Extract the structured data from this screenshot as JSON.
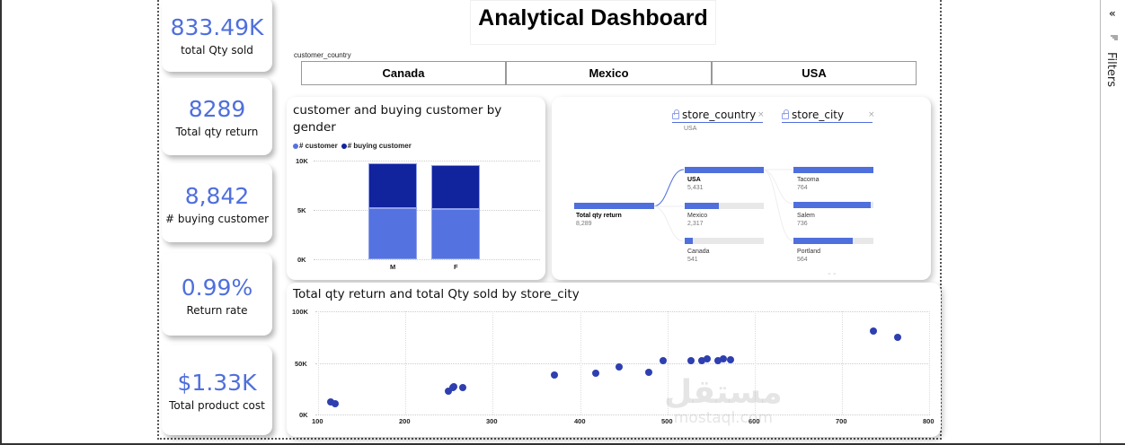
{
  "page": {
    "title": "Analytical Dashboard",
    "accent_color": "#4f6fdc",
    "dark_accent_color": "#12239e"
  },
  "kpis": [
    {
      "value": "833.49K",
      "label": "total Qty sold"
    },
    {
      "value": "8289",
      "label": "Total qty return"
    },
    {
      "value": "8,842",
      "label": "# buying customer"
    },
    {
      "value": "0.99%",
      "label": "Return rate"
    },
    {
      "value": "$1.33K",
      "label": "Total product cost"
    }
  ],
  "slicer": {
    "label": "customer_country",
    "options": [
      "Canada",
      "Mexico",
      "USA"
    ]
  },
  "bar_chart": {
    "title": "customer and buying customer by gender",
    "legend": [
      {
        "label": "# customer",
        "color": "#5473e0"
      },
      {
        "label": "# buying customer",
        "color": "#12239e"
      }
    ],
    "y_ticks": [
      "10K",
      "5K",
      "0K"
    ],
    "categories": [
      "M",
      "F"
    ]
  },
  "decomp_tree": {
    "root": {
      "label": "Total qty return",
      "value": "8,289"
    },
    "level1": {
      "header": "store_country",
      "selected": "USA",
      "nodes": [
        {
          "label": "USA",
          "value": "5,431",
          "pct": 100
        },
        {
          "label": "Mexico",
          "value": "2,317",
          "pct": 43
        },
        {
          "label": "Canada",
          "value": "541",
          "pct": 10
        }
      ]
    },
    "level2": {
      "header": "store_city",
      "nodes": [
        {
          "label": "Tacoma",
          "value": "764",
          "pct": 100
        },
        {
          "label": "Salem",
          "value": "736",
          "pct": 96
        },
        {
          "label": "Portland",
          "value": "564",
          "pct": 74
        }
      ]
    },
    "more_indicator": "⌄⌄"
  },
  "scatter": {
    "title": "Total qty return and total Qty sold by store_city",
    "y_ticks": [
      "100K",
      "50K",
      "0K"
    ],
    "x_ticks": [
      "100",
      "200",
      "300",
      "400",
      "500",
      "600",
      "700",
      "800"
    ]
  },
  "filters_pane": {
    "label": "Filters",
    "collapse_icon": "«"
  },
  "watermark": {
    "arabic": "مستقل",
    "latin": "mostaql.com"
  },
  "chart_data": [
    {
      "type": "bar",
      "title": "customer and buying customer by gender",
      "categories": [
        "M",
        "F"
      ],
      "series": [
        {
          "name": "# customer",
          "values": [
            5200,
            5100
          ]
        },
        {
          "name": "# buying customer",
          "values": [
            4500,
            4400
          ]
        }
      ],
      "stacked": true,
      "xlabel": "",
      "ylabel": "",
      "ylim": [
        0,
        10000
      ],
      "y_tick_labels": [
        "0K",
        "5K",
        "10K"
      ],
      "legend_position": "top-left",
      "grid": true
    },
    {
      "type": "bar",
      "title": "Decomposition tree: Total qty return",
      "root": {
        "label": "Total qty return",
        "value": 8289
      },
      "levels": [
        {
          "field": "store_country",
          "categories": [
            "USA",
            "Mexico",
            "Canada"
          ],
          "values": [
            5431,
            2317,
            541
          ]
        },
        {
          "field": "store_city",
          "filter": "USA",
          "categories": [
            "Tacoma",
            "Salem",
            "Portland"
          ],
          "values": [
            764,
            736,
            564
          ]
        }
      ]
    },
    {
      "type": "scatter",
      "title": "Total qty return and total Qty sold by store_city",
      "xlabel": "Total qty return",
      "ylabel": "total Qty sold",
      "xlim": [
        100,
        800
      ],
      "ylim": [
        0,
        100000
      ],
      "x_tick_labels": [
        "100",
        "200",
        "300",
        "400",
        "500",
        "600",
        "700",
        "800"
      ],
      "y_tick_labels": [
        "0K",
        "50K",
        "100K"
      ],
      "grid": true,
      "points": [
        {
          "x": 114,
          "y": 12000
        },
        {
          "x": 120,
          "y": 10500
        },
        {
          "x": 249,
          "y": 22500
        },
        {
          "x": 254,
          "y": 26000
        },
        {
          "x": 255,
          "y": 27000
        },
        {
          "x": 266,
          "y": 26000
        },
        {
          "x": 371,
          "y": 38000
        },
        {
          "x": 418,
          "y": 40000
        },
        {
          "x": 445,
          "y": 46000
        },
        {
          "x": 479,
          "y": 41000
        },
        {
          "x": 495,
          "y": 52000
        },
        {
          "x": 527,
          "y": 52000
        },
        {
          "x": 540,
          "y": 52000
        },
        {
          "x": 546,
          "y": 54000
        },
        {
          "x": 558,
          "y": 52000
        },
        {
          "x": 564,
          "y": 54000
        },
        {
          "x": 572,
          "y": 53000
        },
        {
          "x": 736,
          "y": 81000
        },
        {
          "x": 764,
          "y": 75000
        }
      ]
    }
  ]
}
